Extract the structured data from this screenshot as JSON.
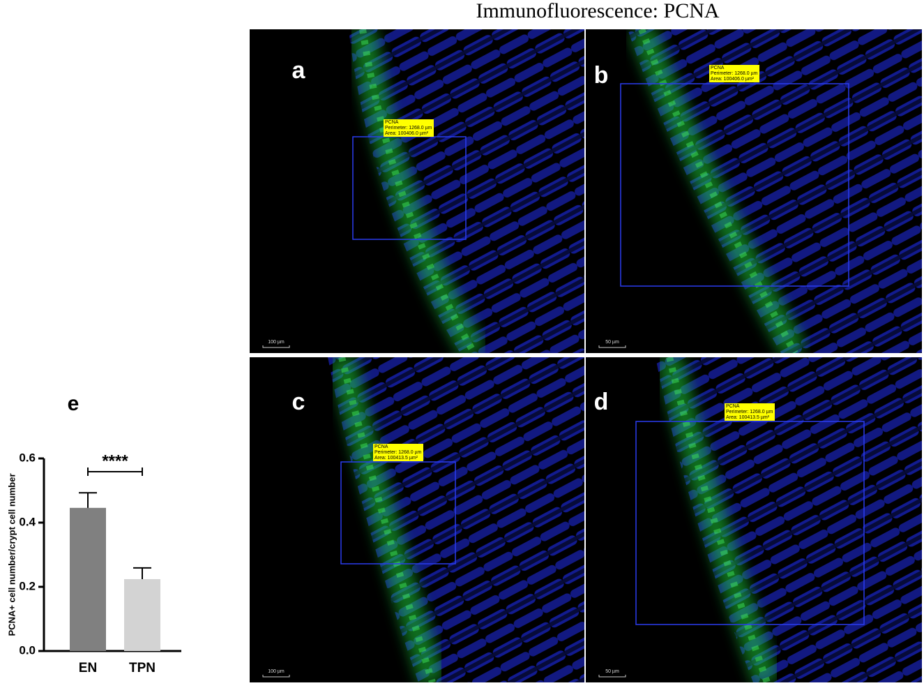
{
  "figure": {
    "title": "Immunofluorescence: PCNA",
    "panels": [
      {
        "label": "a",
        "annotation": [
          "PCNA",
          "Perimeter: 1268.0 µm",
          "Area: 100406.0 µm²"
        ],
        "scale_bar": "100 µm"
      },
      {
        "label": "b",
        "annotation": [
          "PCNA",
          "Perimeter: 1268.0 µm",
          "Area: 100406.0 µm²"
        ],
        "scale_bar": "50 µm"
      },
      {
        "label": "c",
        "annotation": [
          "PCNA",
          "Perimeter: 1268.0 µm",
          "Area: 100413.5 µm²"
        ],
        "scale_bar": "100 µm"
      },
      {
        "label": "d",
        "annotation": [
          "PCNA",
          "Perimeter: 1268.0 µm",
          "Area: 100413.5 µm²"
        ],
        "scale_bar": "50 µm"
      }
    ]
  },
  "chart_data": {
    "type": "bar",
    "panel_label": "e",
    "y_label": "PCNA+ cell number/crypt cell number",
    "categories": [
      "EN",
      "TPN"
    ],
    "values": [
      0.446,
      0.224
    ],
    "errors": [
      0.047,
      0.035
    ],
    "colors": [
      "#808080",
      "#d3d3d3"
    ],
    "significance": "****",
    "ylim": [
      0,
      0.6
    ],
    "yticks": [
      {
        "value": 0,
        "label": "0.0"
      },
      0.2,
      0.4,
      0.6
    ]
  }
}
